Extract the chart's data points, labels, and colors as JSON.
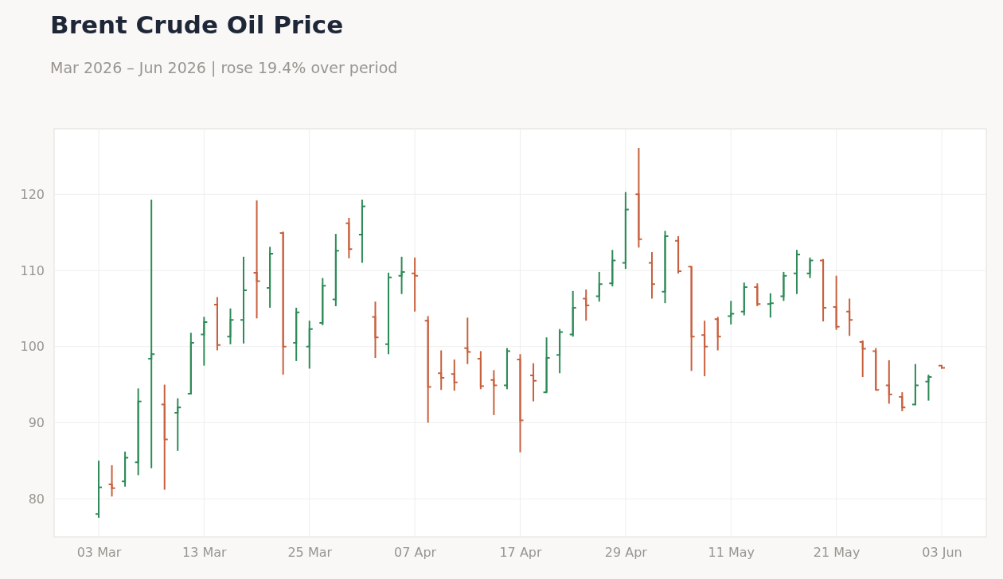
{
  "chart_data": {
    "type": "candlestick",
    "title": "Brent Crude Oil Price",
    "subtitle": "Mar 2026 – Jun 2026 | rose 19.4% over period",
    "categories": [
      "03 Mar",
      null,
      null,
      null,
      null,
      null,
      null,
      null,
      "13 Mar",
      null,
      null,
      null,
      null,
      null,
      null,
      null,
      "25 Mar",
      null,
      null,
      null,
      null,
      null,
      null,
      null,
      "07 Apr",
      null,
      null,
      null,
      null,
      null,
      null,
      null,
      "17 Apr",
      null,
      null,
      null,
      null,
      null,
      null,
      null,
      "29 Apr",
      null,
      null,
      null,
      null,
      null,
      null,
      null,
      "11 May",
      null,
      null,
      null,
      null,
      null,
      null,
      null,
      "21 May",
      null,
      null,
      null,
      null,
      null,
      null,
      null,
      "03 Jun"
    ],
    "ohlc": [
      [
        78,
        85,
        77.5,
        81.5
      ],
      [
        81.9,
        84.4,
        80.3,
        81.4
      ],
      [
        82.3,
        86.2,
        81.6,
        85.4
      ],
      [
        84.8,
        94.5,
        83.1,
        92.8
      ],
      [
        98.4,
        119.3,
        84,
        99
      ],
      [
        92.4,
        95,
        81.2,
        87.8
      ],
      [
        91.3,
        93.2,
        86.3,
        92
      ],
      [
        93.8,
        101.8,
        93.7,
        100.5
      ],
      [
        101.6,
        103.9,
        97.5,
        103.2
      ],
      [
        105.5,
        106.5,
        99.5,
        100.2
      ],
      [
        101.3,
        105,
        100.3,
        103.5
      ],
      [
        103.5,
        111.8,
        100.4,
        107.4
      ],
      [
        109.7,
        119.2,
        103.7,
        108.6
      ],
      [
        107.7,
        113.1,
        105.1,
        112.2
      ],
      [
        114.9,
        115.1,
        96.3,
        100
      ],
      [
        100.5,
        105.1,
        98.1,
        104.5
      ],
      [
        100,
        103.4,
        97.1,
        102.3
      ],
      [
        103.1,
        109,
        102.8,
        108
      ],
      [
        106.2,
        114.8,
        105.3,
        112.6
      ],
      [
        116.2,
        116.9,
        111.6,
        112.8
      ],
      [
        114.7,
        119.3,
        111,
        118.4
      ],
      [
        103.9,
        105.9,
        98.5,
        101.2
      ],
      [
        100.3,
        109.7,
        99,
        109.1
      ],
      [
        109.3,
        111.8,
        106.9,
        109.8
      ],
      [
        109.6,
        111.7,
        104.6,
        109.3
      ],
      [
        103.4,
        104,
        90,
        94.7
      ],
      [
        96.5,
        99.5,
        94.3,
        95.9
      ],
      [
        96.4,
        98.3,
        94.2,
        95.3
      ],
      [
        99.8,
        103.8,
        97.7,
        99.3
      ],
      [
        98.4,
        99.4,
        94.4,
        94.8
      ],
      [
        95.6,
        96.9,
        91,
        94.9
      ],
      [
        94.9,
        99.8,
        94.4,
        99.4
      ],
      [
        98.3,
        99,
        86.1,
        90.3
      ],
      [
        96.2,
        97.8,
        92.8,
        95.5
      ],
      [
        94,
        101.2,
        94,
        98.5
      ],
      [
        98.9,
        102.3,
        96.5,
        101.9
      ],
      [
        101.6,
        107.3,
        101.3,
        105.1
      ],
      [
        106.3,
        107.5,
        103.4,
        105.4
      ],
      [
        106.6,
        109.8,
        105.9,
        108.2
      ],
      [
        108.3,
        112.7,
        107.9,
        111.3
      ],
      [
        111,
        120.3,
        110.2,
        118
      ],
      [
        120,
        126.1,
        113,
        114.1
      ],
      [
        111,
        112.4,
        106.3,
        108.2
      ],
      [
        107.2,
        115.2,
        105.7,
        114.5
      ],
      [
        113.9,
        114.5,
        109.6,
        109.9
      ],
      [
        110.5,
        110.5,
        96.8,
        101.3
      ],
      [
        101.5,
        103.4,
        96.1,
        100
      ],
      [
        103.6,
        103.9,
        99.5,
        101.3
      ],
      [
        104,
        106,
        102.9,
        104.3
      ],
      [
        104.6,
        108.4,
        104.1,
        107.8
      ],
      [
        107.8,
        108.3,
        105.3,
        105.6
      ],
      [
        105.6,
        107,
        103.8,
        105.7
      ],
      [
        106.6,
        109.8,
        106,
        109.3
      ],
      [
        109.6,
        112.7,
        106.9,
        112.1
      ],
      [
        109.6,
        111.7,
        109,
        111.3
      ],
      [
        111.3,
        111.5,
        103.3,
        105.1
      ],
      [
        105.2,
        109.3,
        102.2,
        102.6
      ],
      [
        104.6,
        106.3,
        101.4,
        103.5
      ],
      [
        100.6,
        100.8,
        96,
        99.7
      ],
      [
        99.4,
        99.8,
        94.3,
        94.3
      ],
      [
        94.9,
        98.2,
        92.5,
        93.7
      ],
      [
        93.4,
        94,
        91.5,
        92
      ],
      [
        92.4,
        97.7,
        92.3,
        94.9
      ],
      [
        95.4,
        96.3,
        92.9,
        96
      ],
      [
        97.5,
        97.5,
        97.1,
        97.2
      ]
    ],
    "colors": [
      "#2e8b57",
      "#c8603d",
      "#2e8b57",
      "#2e8b57",
      "#2e8b57",
      "#c8603d",
      "#2e8b57",
      "#2e8b57",
      "#2e8b57",
      "#c8603d",
      "#2e8b57",
      "#2e8b57",
      "#c8603d",
      "#2e8b57",
      "#c8603d",
      "#2e8b57",
      "#2e8b57",
      "#2e8b57",
      "#2e8b57",
      "#c8603d",
      "#2e8b57",
      "#c8603d",
      "#2e8b57",
      "#2e8b57",
      "#c8603d",
      "#c8603d",
      "#c8603d",
      "#c8603d",
      "#c8603d",
      "#c8603d",
      "#c8603d",
      "#2e8b57",
      "#c8603d",
      "#c8603d",
      "#2e8b57",
      "#2e8b57",
      "#2e8b57",
      "#c8603d",
      "#2e8b57",
      "#2e8b57",
      "#2e8b57",
      "#c8603d",
      "#c8603d",
      "#2e8b57",
      "#c8603d",
      "#c8603d",
      "#c8603d",
      "#c8603d",
      "#2e8b57",
      "#2e8b57",
      "#c8603d",
      "#2e8b57",
      "#2e8b57",
      "#2e8b57",
      "#2e8b57",
      "#c8603d",
      "#c8603d",
      "#c8603d",
      "#c8603d",
      "#c8603d",
      "#c8603d",
      "#c8603d",
      "#2e8b57",
      "#2e8b57",
      "#c8603d"
    ],
    "ylim": [
      75,
      128.6
    ],
    "yticks": [
      80,
      90,
      100,
      110,
      120
    ],
    "grid": true
  }
}
